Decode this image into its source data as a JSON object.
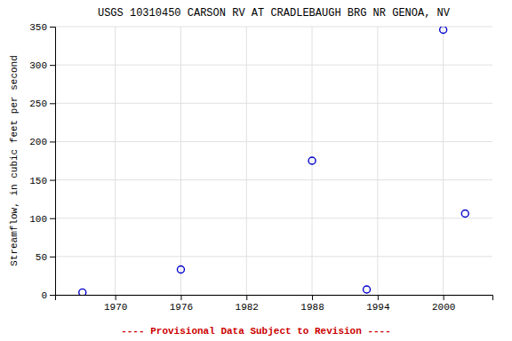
{
  "chart_data": {
    "type": "scatter",
    "title": "USGS 10310450 CARSON RV AT CRADLEBAUGH BRG NR GENOA, NV",
    "ylabel": "Streamflow, in cubic feet per second",
    "annotations": [
      "---- Provisional Data Subject to Revision ----"
    ],
    "x": [
      1967,
      1976,
      1988,
      1993,
      2000,
      2002
    ],
    "values": [
      3,
      33,
      175,
      7,
      346,
      106
    ],
    "xlim": [
      1964.5,
      2004.5
    ],
    "ylim": [
      0,
      350
    ],
    "xticks": [
      1970,
      1976,
      1982,
      1988,
      1994,
      2000
    ],
    "yticks": [
      0,
      50,
      100,
      150,
      200,
      250,
      300,
      350
    ],
    "color": "#0000CC",
    "marker": "circle",
    "grid": true
  }
}
